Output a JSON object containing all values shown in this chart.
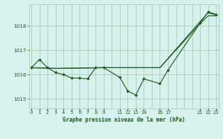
{
  "title": "Graphe pression niveau de la mer (hPa)",
  "bg_color": "#d8f0ee",
  "grid_color": "#9ec8a0",
  "line_color": "#1a5c1a",
  "marker_color": "#1a5c1a",
  "ylim": [
    1014.6,
    1018.9
  ],
  "yticks": [
    1015,
    1016,
    1017,
    1018
  ],
  "xlim": [
    -0.3,
    23.3
  ],
  "xtick_positions": [
    0,
    1,
    2,
    3,
    4,
    5,
    6,
    7,
    8,
    9,
    11,
    12,
    13,
    14,
    16,
    17,
    21,
    22,
    23
  ],
  "xtick_labels": [
    "0",
    "1",
    "2",
    "3",
    "4",
    "5",
    "6",
    "7",
    "8",
    "9",
    "11",
    "12",
    "13",
    "14",
    "16",
    "17",
    "21",
    "22",
    "23"
  ],
  "series1_x": [
    0,
    1,
    2,
    3,
    4,
    5,
    6,
    7,
    8,
    9,
    11,
    12,
    13,
    14,
    16,
    17,
    21,
    22,
    23
  ],
  "series1_y": [
    1016.28,
    1016.62,
    1016.28,
    1016.08,
    1016.0,
    1015.85,
    1015.85,
    1015.82,
    1016.28,
    1016.28,
    1015.88,
    1015.32,
    1015.15,
    1015.82,
    1015.62,
    1016.18,
    1018.12,
    1018.58,
    1018.48
  ],
  "series2_x": [
    0,
    3,
    9,
    14,
    16,
    21,
    22,
    23
  ],
  "series2_y": [
    1016.28,
    1016.25,
    1016.28,
    1016.28,
    1016.28,
    1018.18,
    1018.55,
    1018.45
  ],
  "series3_x": [
    0,
    3,
    9,
    14,
    16,
    21,
    22,
    23
  ],
  "series3_y": [
    1016.28,
    1016.25,
    1016.28,
    1016.28,
    1016.28,
    1018.1,
    1018.42,
    1018.42
  ]
}
